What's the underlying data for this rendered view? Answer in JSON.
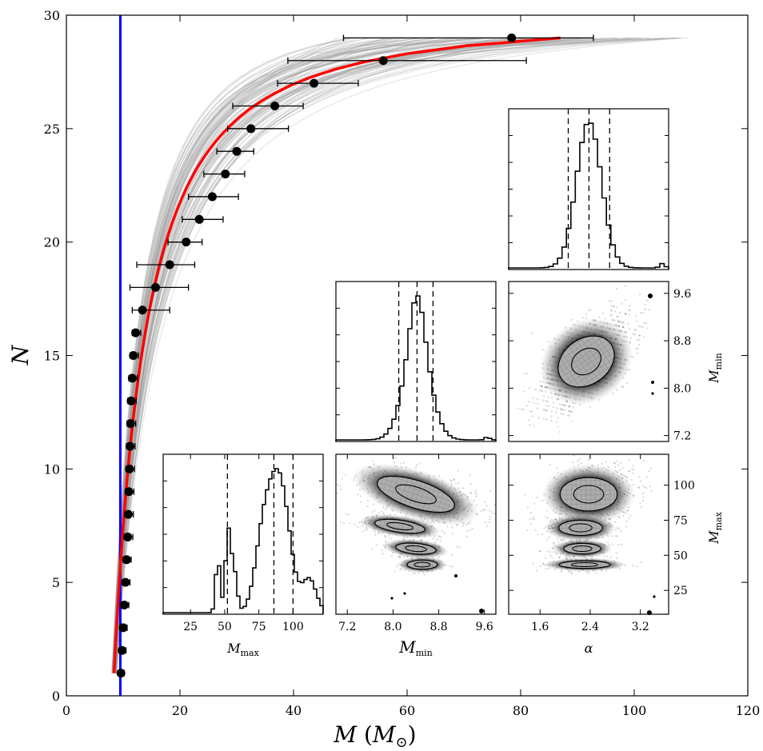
{
  "chart_data": [
    {
      "type": "scatter",
      "title": "",
      "xlabel": "M (M⊙)",
      "ylabel": "N",
      "xlim": [
        0,
        120
      ],
      "ylim": [
        0,
        30
      ],
      "x_ticks": [
        "0",
        "20",
        "40",
        "60",
        "80",
        "100",
        "120"
      ],
      "y_ticks": [
        "0",
        "5",
        "10",
        "15",
        "20",
        "25",
        "30"
      ],
      "vertical_line": {
        "x": 9.5,
        "color": "#0000ff"
      },
      "fit_curve": {
        "color": "#ff0000",
        "m_min": 8.4,
        "m_max": 87,
        "n_points": 29
      },
      "posterior_curves": {
        "color": "#9a9a9a",
        "count": 100
      },
      "points": [
        {
          "n": 1,
          "m": 9.6,
          "err_lo": 0.4,
          "err_hi": 0.6
        },
        {
          "n": 2,
          "m": 9.8,
          "err_lo": 0.5,
          "err_hi": 0.7
        },
        {
          "n": 3,
          "m": 10.0,
          "err_lo": 0.5,
          "err_hi": 0.7
        },
        {
          "n": 4,
          "m": 10.2,
          "err_lo": 0.5,
          "err_hi": 0.8
        },
        {
          "n": 5,
          "m": 10.4,
          "err_lo": 0.5,
          "err_hi": 0.8
        },
        {
          "n": 6,
          "m": 10.6,
          "err_lo": 0.6,
          "err_hi": 0.8
        },
        {
          "n": 7,
          "m": 10.8,
          "err_lo": 0.6,
          "err_hi": 0.9
        },
        {
          "n": 8,
          "m": 10.9,
          "err_lo": 0.6,
          "err_hi": 0.9
        },
        {
          "n": 9,
          "m": 11.0,
          "err_lo": 0.6,
          "err_hi": 0.9
        },
        {
          "n": 10,
          "m": 11.1,
          "err_lo": 0.6,
          "err_hi": 0.9
        },
        {
          "n": 11,
          "m": 11.2,
          "err_lo": 0.6,
          "err_hi": 0.9
        },
        {
          "n": 12,
          "m": 11.3,
          "err_lo": 0.6,
          "err_hi": 0.9
        },
        {
          "n": 13,
          "m": 11.4,
          "err_lo": 0.6,
          "err_hi": 0.9
        },
        {
          "n": 14,
          "m": 11.6,
          "err_lo": 0.6,
          "err_hi": 0.9
        },
        {
          "n": 15,
          "m": 11.8,
          "err_lo": 0.6,
          "err_hi": 0.9
        },
        {
          "n": 16,
          "m": 12.2,
          "err_lo": 0.6,
          "err_hi": 0.9
        },
        {
          "n": 17,
          "m": 13.4,
          "err_lo": 1.8,
          "err_hi": 4.8
        },
        {
          "n": 18,
          "m": 15.7,
          "err_lo": 4.5,
          "err_hi": 5.8
        },
        {
          "n": 19,
          "m": 18.2,
          "err_lo": 5.8,
          "err_hi": 4.4
        },
        {
          "n": 20,
          "m": 21.1,
          "err_lo": 3.2,
          "err_hi": 2.8
        },
        {
          "n": 21,
          "m": 23.4,
          "err_lo": 3.0,
          "err_hi": 4.2
        },
        {
          "n": 22,
          "m": 25.7,
          "err_lo": 4.2,
          "err_hi": 4.6
        },
        {
          "n": 23,
          "m": 28.0,
          "err_lo": 3.8,
          "err_hi": 3.4
        },
        {
          "n": 24,
          "m": 30.0,
          "err_lo": 3.5,
          "err_hi": 3.0
        },
        {
          "n": 25,
          "m": 32.5,
          "err_lo": 4.1,
          "err_hi": 6.6
        },
        {
          "n": 26,
          "m": 36.7,
          "err_lo": 7.4,
          "err_hi": 5.0
        },
        {
          "n": 27,
          "m": 43.6,
          "err_lo": 6.4,
          "err_hi": 7.8
        },
        {
          "n": 28,
          "m": 55.8,
          "err_lo": 16.8,
          "err_hi": 25.2
        },
        {
          "n": 29,
          "m": 78.4,
          "err_lo": 29.6,
          "err_hi": 14.4
        }
      ]
    },
    {
      "type": "histogram",
      "panel": "alpha-hist",
      "xlabel": "α",
      "quantiles": [
        2.05,
        2.38,
        2.71
      ],
      "xlim": [
        1.1,
        3.65
      ]
    },
    {
      "type": "histogram",
      "panel": "mmin-hist",
      "quantiles": [
        8.1,
        8.42,
        8.7
      ],
      "xlim": [
        7.0,
        9.8
      ]
    },
    {
      "type": "heatmap",
      "panel": "alpha-mmin",
      "xlim": [
        1.1,
        3.65
      ],
      "ylim": [
        7.1,
        9.8
      ],
      "y_ticks": [
        "7.2",
        "8.0",
        "8.8",
        "9.6"
      ],
      "ylabel": "M_min"
    },
    {
      "type": "histogram",
      "panel": "mmax-hist",
      "xlabel": "M_max",
      "x_ticks": [
        "25",
        "50",
        "75",
        "100"
      ],
      "quantiles": [
        52,
        86,
        100
      ],
      "xlim": [
        5,
        122
      ]
    },
    {
      "type": "heatmap",
      "panel": "mmin-mmax",
      "xlabel": "M_min",
      "x_ticks": [
        "7.2",
        "8.0",
        "8.8",
        "9.6"
      ],
      "xlim": [
        7.0,
        9.8
      ],
      "ylim": [
        8,
        122
      ]
    },
    {
      "type": "heatmap",
      "panel": "alpha-mmax",
      "xlabel": "α",
      "x_ticks": [
        "1.6",
        "2.4",
        "3.2"
      ],
      "xlim": [
        1.1,
        3.65
      ],
      "ylim": [
        8,
        122
      ],
      "y_ticks": [
        "25",
        "50",
        "75",
        "100"
      ],
      "ylabel": "M_max"
    }
  ]
}
